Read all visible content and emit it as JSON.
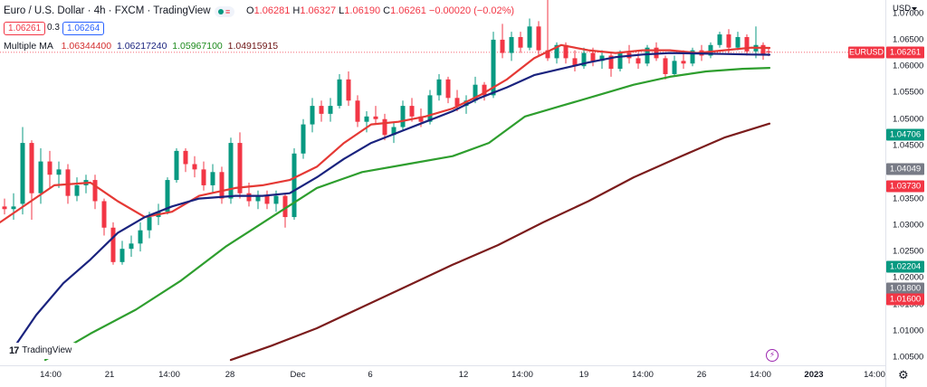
{
  "header": {
    "title": "Euro / U.S. Dollar · 4h · FXCM · TradingView",
    "ohlc": {
      "o_label": "O",
      "o": "1.06281",
      "h_label": "H",
      "h": "1.06327",
      "l_label": "L",
      "l": "1.06190",
      "c_label": "C",
      "c": "1.06261",
      "change": "−0.00020 (−0.02%)"
    },
    "bid": "1.06261",
    "spread": "0.3",
    "ask": "1.06264",
    "indicator_name": "Multiple MA",
    "ma_values": [
      "1.06344400",
      "1.06217240",
      "1.05967100",
      "1.04915915"
    ]
  },
  "axis": {
    "currency": "USD",
    "price_ticks": [
      "1.07000",
      "1.06500",
      "1.06000",
      "1.05500",
      "1.05000",
      "1.04500",
      "1.04000",
      "1.03500",
      "1.03000",
      "1.02500",
      "1.02000",
      "1.01500",
      "1.01000",
      "1.00500"
    ],
    "time_ticks": [
      "14:00",
      "21",
      "14:00",
      "28",
      "Dec",
      "6",
      "12",
      "14:00",
      "19",
      "14:00",
      "26",
      "14:00",
      "2023",
      "14:00"
    ]
  },
  "price_tags": [
    {
      "id": "last",
      "label": "EURUSD",
      "value": "1.06261",
      "price": 1.06261,
      "color": "#f23645"
    },
    {
      "id": "t1",
      "value": "1.04706",
      "price": 1.04706,
      "color": "#089981"
    },
    {
      "id": "t2",
      "value": "1.04049",
      "price": 1.04049,
      "color": "#787b86"
    },
    {
      "id": "t3",
      "value": "1.03730",
      "price": 1.0373,
      "color": "#f23645"
    },
    {
      "id": "t4",
      "value": "1.02204",
      "price": 1.02204,
      "color": "#089981"
    },
    {
      "id": "t5",
      "value": "1.01800",
      "price": 1.018,
      "color": "#787b86"
    },
    {
      "id": "t6",
      "value": "1.01600",
      "price": 1.016,
      "color": "#f23645"
    }
  ],
  "branding": {
    "logo_text": "TradingView",
    "logo_mark": "17"
  },
  "colors": {
    "up": "#089981",
    "down": "#f23645",
    "ma1": "#e53935",
    "ma2": "#1a237e",
    "ma3": "#2e9e2e",
    "ma4": "#7b1c1c"
  },
  "chart_data": {
    "type": "line",
    "ylim": [
      1.0035,
      1.0725
    ],
    "x_range": [
      0,
      960
    ],
    "series": [
      {
        "key": "ma1",
        "x": [
          0,
          30,
          60,
          100,
          130,
          160,
          190,
          220,
          260,
          290,
          320,
          350,
          380,
          410,
          440,
          470,
          500,
          530,
          560,
          590,
          620,
          650,
          680,
          710,
          740,
          770,
          800,
          830,
          850
        ],
        "values": [
          1.0305,
          1.034,
          1.0375,
          1.038,
          1.0345,
          1.0315,
          1.0325,
          1.0355,
          1.037,
          1.0375,
          1.0385,
          1.041,
          1.0455,
          1.049,
          1.0495,
          1.0505,
          1.052,
          1.0545,
          1.0575,
          1.0615,
          1.064,
          1.063,
          1.0625,
          1.063,
          1.063,
          1.0625,
          1.063,
          1.0635,
          1.06344
        ]
      },
      {
        "key": "ma2",
        "x": [
          10,
          40,
          70,
          100,
          130,
          160,
          190,
          220,
          260,
          290,
          320,
          350,
          380,
          410,
          440,
          470,
          500,
          530,
          560,
          590,
          620,
          650,
          680,
          710,
          740,
          770,
          800,
          830,
          850
        ],
        "values": [
          1.0055,
          1.013,
          1.019,
          1.0235,
          1.0285,
          1.0315,
          1.0335,
          1.035,
          1.0355,
          1.0355,
          1.036,
          1.039,
          1.0425,
          1.0455,
          1.0475,
          1.0495,
          1.0515,
          1.054,
          1.056,
          1.0583,
          1.0595,
          1.0607,
          1.0617,
          1.0622,
          1.0625,
          1.0624,
          1.0623,
          1.0622,
          1.06217
        ]
      },
      {
        "key": "ma3",
        "x": [
          50,
          100,
          150,
          200,
          250,
          300,
          350,
          400,
          450,
          500,
          540,
          580,
          620,
          660,
          700,
          740,
          780,
          820,
          850
        ],
        "values": [
          1.0045,
          1.0095,
          1.014,
          1.0195,
          1.026,
          1.0315,
          1.037,
          1.04,
          1.0415,
          1.043,
          1.0455,
          1.0505,
          1.0525,
          1.0545,
          1.0565,
          1.058,
          1.059,
          1.0595,
          1.05967
        ]
      },
      {
        "key": "ma4",
        "x": [
          255,
          300,
          350,
          400,
          450,
          500,
          550,
          600,
          650,
          700,
          750,
          800,
          850
        ],
        "values": [
          1.0045,
          1.0072,
          1.0105,
          1.0145,
          1.0185,
          1.0225,
          1.0262,
          1.0305,
          1.0345,
          1.039,
          1.0428,
          1.0465,
          1.04916
        ]
      }
    ],
    "candles": [
      {
        "x": 5,
        "o": 1.0335,
        "h": 1.035,
        "l": 1.032,
        "c": 1.033
      },
      {
        "x": 15,
        "o": 1.033,
        "h": 1.036,
        "l": 1.031,
        "c": 1.0335
      },
      {
        "x": 25,
        "o": 1.034,
        "h": 1.0485,
        "l": 1.032,
        "c": 1.0455
      },
      {
        "x": 35,
        "o": 1.0455,
        "h": 1.046,
        "l": 1.031,
        "c": 1.036
      },
      {
        "x": 45,
        "o": 1.036,
        "h": 1.0445,
        "l": 1.034,
        "c": 1.042
      },
      {
        "x": 55,
        "o": 1.042,
        "h": 1.044,
        "l": 1.037,
        "c": 1.0395
      },
      {
        "x": 65,
        "o": 1.0395,
        "h": 1.042,
        "l": 1.037,
        "c": 1.0405
      },
      {
        "x": 75,
        "o": 1.0405,
        "h": 1.0415,
        "l": 1.034,
        "c": 1.0355
      },
      {
        "x": 85,
        "o": 1.0355,
        "h": 1.039,
        "l": 1.0345,
        "c": 1.0375
      },
      {
        "x": 95,
        "o": 1.0375,
        "h": 1.0395,
        "l": 1.036,
        "c": 1.0385
      },
      {
        "x": 105,
        "o": 1.0385,
        "h": 1.0395,
        "l": 1.033,
        "c": 1.0345
      },
      {
        "x": 115,
        "o": 1.0345,
        "h": 1.035,
        "l": 1.028,
        "c": 1.0295
      },
      {
        "x": 125,
        "o": 1.0295,
        "h": 1.0305,
        "l": 1.0225,
        "c": 1.023
      },
      {
        "x": 135,
        "o": 1.023,
        "h": 1.027,
        "l": 1.0225,
        "c": 1.0255
      },
      {
        "x": 145,
        "o": 1.0255,
        "h": 1.028,
        "l": 1.024,
        "c": 1.0265
      },
      {
        "x": 155,
        "o": 1.0265,
        "h": 1.0305,
        "l": 1.025,
        "c": 1.029
      },
      {
        "x": 165,
        "o": 1.029,
        "h": 1.0325,
        "l": 1.0275,
        "c": 1.0315
      },
      {
        "x": 175,
        "o": 1.0315,
        "h": 1.034,
        "l": 1.03,
        "c": 1.0325
      },
      {
        "x": 185,
        "o": 1.0325,
        "h": 1.039,
        "l": 1.032,
        "c": 1.0385
      },
      {
        "x": 195,
        "o": 1.0385,
        "h": 1.0445,
        "l": 1.038,
        "c": 1.044
      },
      {
        "x": 205,
        "o": 1.044,
        "h": 1.0445,
        "l": 1.04,
        "c": 1.0415
      },
      {
        "x": 215,
        "o": 1.0415,
        "h": 1.043,
        "l": 1.039,
        "c": 1.0405
      },
      {
        "x": 225,
        "o": 1.0405,
        "h": 1.042,
        "l": 1.0365,
        "c": 1.0375
      },
      {
        "x": 235,
        "o": 1.0375,
        "h": 1.0415,
        "l": 1.036,
        "c": 1.04
      },
      {
        "x": 245,
        "o": 1.04,
        "h": 1.041,
        "l": 1.034,
        "c": 1.035
      },
      {
        "x": 255,
        "o": 1.035,
        "h": 1.0465,
        "l": 1.034,
        "c": 1.0455
      },
      {
        "x": 265,
        "o": 1.0455,
        "h": 1.0475,
        "l": 1.035,
        "c": 1.036
      },
      {
        "x": 275,
        "o": 1.036,
        "h": 1.038,
        "l": 1.0335,
        "c": 1.0345
      },
      {
        "x": 285,
        "o": 1.0345,
        "h": 1.0365,
        "l": 1.033,
        "c": 1.0355
      },
      {
        "x": 295,
        "o": 1.0355,
        "h": 1.0365,
        "l": 1.033,
        "c": 1.034
      },
      {
        "x": 305,
        "o": 1.034,
        "h": 1.0365,
        "l": 1.0325,
        "c": 1.0355
      },
      {
        "x": 315,
        "o": 1.0355,
        "h": 1.036,
        "l": 1.0295,
        "c": 1.0315
      },
      {
        "x": 325,
        "o": 1.0315,
        "h": 1.0445,
        "l": 1.031,
        "c": 1.0435
      },
      {
        "x": 335,
        "o": 1.0435,
        "h": 1.05,
        "l": 1.0425,
        "c": 1.049
      },
      {
        "x": 345,
        "o": 1.049,
        "h": 1.054,
        "l": 1.0475,
        "c": 1.0525
      },
      {
        "x": 355,
        "o": 1.0525,
        "h": 1.0535,
        "l": 1.0495,
        "c": 1.051
      },
      {
        "x": 365,
        "o": 1.051,
        "h": 1.054,
        "l": 1.0495,
        "c": 1.0525
      },
      {
        "x": 375,
        "o": 1.0525,
        "h": 1.0585,
        "l": 1.052,
        "c": 1.0575
      },
      {
        "x": 385,
        "o": 1.0575,
        "h": 1.059,
        "l": 1.0525,
        "c": 1.0535
      },
      {
        "x": 395,
        "o": 1.0535,
        "h": 1.0545,
        "l": 1.0485,
        "c": 1.0495
      },
      {
        "x": 405,
        "o": 1.0495,
        "h": 1.0515,
        "l": 1.0475,
        "c": 1.0505
      },
      {
        "x": 415,
        "o": 1.0505,
        "h": 1.0525,
        "l": 1.049,
        "c": 1.05
      },
      {
        "x": 425,
        "o": 1.05,
        "h": 1.051,
        "l": 1.046,
        "c": 1.047
      },
      {
        "x": 435,
        "o": 1.047,
        "h": 1.0495,
        "l": 1.0455,
        "c": 1.0485
      },
      {
        "x": 445,
        "o": 1.0485,
        "h": 1.0535,
        "l": 1.048,
        "c": 1.0525
      },
      {
        "x": 455,
        "o": 1.0525,
        "h": 1.054,
        "l": 1.0495,
        "c": 1.0505
      },
      {
        "x": 465,
        "o": 1.0505,
        "h": 1.052,
        "l": 1.0485,
        "c": 1.0495
      },
      {
        "x": 475,
        "o": 1.0495,
        "h": 1.0555,
        "l": 1.049,
        "c": 1.0545
      },
      {
        "x": 485,
        "o": 1.0545,
        "h": 1.0585,
        "l": 1.0535,
        "c": 1.0575
      },
      {
        "x": 495,
        "o": 1.0575,
        "h": 1.058,
        "l": 1.053,
        "c": 1.054
      },
      {
        "x": 505,
        "o": 1.054,
        "h": 1.0555,
        "l": 1.0515,
        "c": 1.0525
      },
      {
        "x": 515,
        "o": 1.0525,
        "h": 1.0545,
        "l": 1.051,
        "c": 1.0535
      },
      {
        "x": 525,
        "o": 1.0535,
        "h": 1.058,
        "l": 1.053,
        "c": 1.0565
      },
      {
        "x": 535,
        "o": 1.0565,
        "h": 1.057,
        "l": 1.0535,
        "c": 1.0545
      },
      {
        "x": 545,
        "o": 1.0545,
        "h": 1.0665,
        "l": 1.054,
        "c": 1.065
      },
      {
        "x": 555,
        "o": 1.065,
        "h": 1.068,
        "l": 1.0615,
        "c": 1.0625
      },
      {
        "x": 565,
        "o": 1.0625,
        "h": 1.0665,
        "l": 1.061,
        "c": 1.0655
      },
      {
        "x": 575,
        "o": 1.0655,
        "h": 1.0665,
        "l": 1.0625,
        "c": 1.0635
      },
      {
        "x": 585,
        "o": 1.0635,
        "h": 1.069,
        "l": 1.063,
        "c": 1.0675
      },
      {
        "x": 595,
        "o": 1.0675,
        "h": 1.0685,
        "l": 1.062,
        "c": 1.063
      },
      {
        "x": 605,
        "o": 1.063,
        "h": 1.0725,
        "l": 1.061,
        "c": 1.0615
      },
      {
        "x": 615,
        "o": 1.0615,
        "h": 1.0645,
        "l": 1.0605,
        "c": 1.064
      },
      {
        "x": 625,
        "o": 1.064,
        "h": 1.0645,
        "l": 1.0605,
        "c": 1.0615
      },
      {
        "x": 635,
        "o": 1.0615,
        "h": 1.063,
        "l": 1.059,
        "c": 1.06
      },
      {
        "x": 645,
        "o": 1.06,
        "h": 1.0635,
        "l": 1.0595,
        "c": 1.0625
      },
      {
        "x": 655,
        "o": 1.0625,
        "h": 1.0635,
        "l": 1.06,
        "c": 1.061
      },
      {
        "x": 665,
        "o": 1.061,
        "h": 1.063,
        "l": 1.0595,
        "c": 1.062
      },
      {
        "x": 675,
        "o": 1.062,
        "h": 1.0625,
        "l": 1.058,
        "c": 1.0595
      },
      {
        "x": 685,
        "o": 1.0595,
        "h": 1.063,
        "l": 1.059,
        "c": 1.0625
      },
      {
        "x": 695,
        "o": 1.0625,
        "h": 1.064,
        "l": 1.0605,
        "c": 1.0615
      },
      {
        "x": 705,
        "o": 1.0615,
        "h": 1.0625,
        "l": 1.0595,
        "c": 1.0605
      },
      {
        "x": 715,
        "o": 1.0605,
        "h": 1.064,
        "l": 1.06,
        "c": 1.0635
      },
      {
        "x": 725,
        "o": 1.0635,
        "h": 1.0645,
        "l": 1.061,
        "c": 1.0615
      },
      {
        "x": 735,
        "o": 1.0615,
        "h": 1.062,
        "l": 1.0575,
        "c": 1.0585
      },
      {
        "x": 745,
        "o": 1.0585,
        "h": 1.062,
        "l": 1.058,
        "c": 1.061
      },
      {
        "x": 755,
        "o": 1.061,
        "h": 1.063,
        "l": 1.0595,
        "c": 1.0605
      },
      {
        "x": 765,
        "o": 1.0605,
        "h": 1.0635,
        "l": 1.06,
        "c": 1.063
      },
      {
        "x": 775,
        "o": 1.063,
        "h": 1.064,
        "l": 1.061,
        "c": 1.062
      },
      {
        "x": 785,
        "o": 1.062,
        "h": 1.0645,
        "l": 1.0615,
        "c": 1.064
      },
      {
        "x": 795,
        "o": 1.064,
        "h": 1.0665,
        "l": 1.0635,
        "c": 1.066
      },
      {
        "x": 805,
        "o": 1.066,
        "h": 1.067,
        "l": 1.0625,
        "c": 1.0635
      },
      {
        "x": 815,
        "o": 1.0635,
        "h": 1.0665,
        "l": 1.063,
        "c": 1.0655
      },
      {
        "x": 825,
        "o": 1.0655,
        "h": 1.066,
        "l": 1.062,
        "c": 1.0628
      },
      {
        "x": 835,
        "o": 1.0628,
        "h": 1.0675,
        "l": 1.0615,
        "c": 1.064
      },
      {
        "x": 843,
        "o": 1.064,
        "h": 1.0645,
        "l": 1.0612,
        "c": 1.0622
      },
      {
        "x": 849,
        "o": 1.0628,
        "h": 1.0633,
        "l": 1.0619,
        "c": 1.0626
      }
    ]
  }
}
